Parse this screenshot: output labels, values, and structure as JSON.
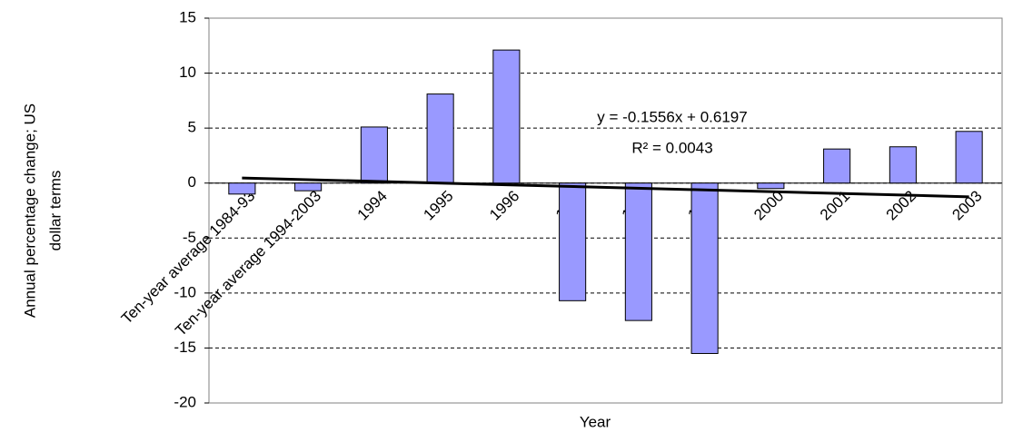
{
  "chart_data": {
    "type": "bar",
    "categories": [
      "Ten-year average 1984-93",
      "Ten-year average 1994-2003",
      "1994",
      "1995",
      "1996",
      "1997",
      "1998",
      "1999",
      "2000",
      "2001",
      "2002",
      "2003"
    ],
    "values": [
      -1.0,
      -0.7,
      5.1,
      8.1,
      12.1,
      -10.7,
      -12.5,
      -15.5,
      -0.5,
      3.1,
      3.3,
      4.7
    ],
    "color": "#9999ff",
    "ylim": [
      -20,
      15
    ],
    "yticks": [
      -20,
      -15,
      -10,
      -5,
      0,
      5,
      10,
      15
    ],
    "grid": true,
    "x_label": "Year",
    "y_label": [
      "Annual percentage change; US",
      "dollar terms"
    ],
    "trendline": {
      "slope": -0.1556,
      "intercept": 0.6197
    },
    "annotations": [
      "y = -0.1556x + 0.6197",
      "R² = 0.0043"
    ]
  }
}
